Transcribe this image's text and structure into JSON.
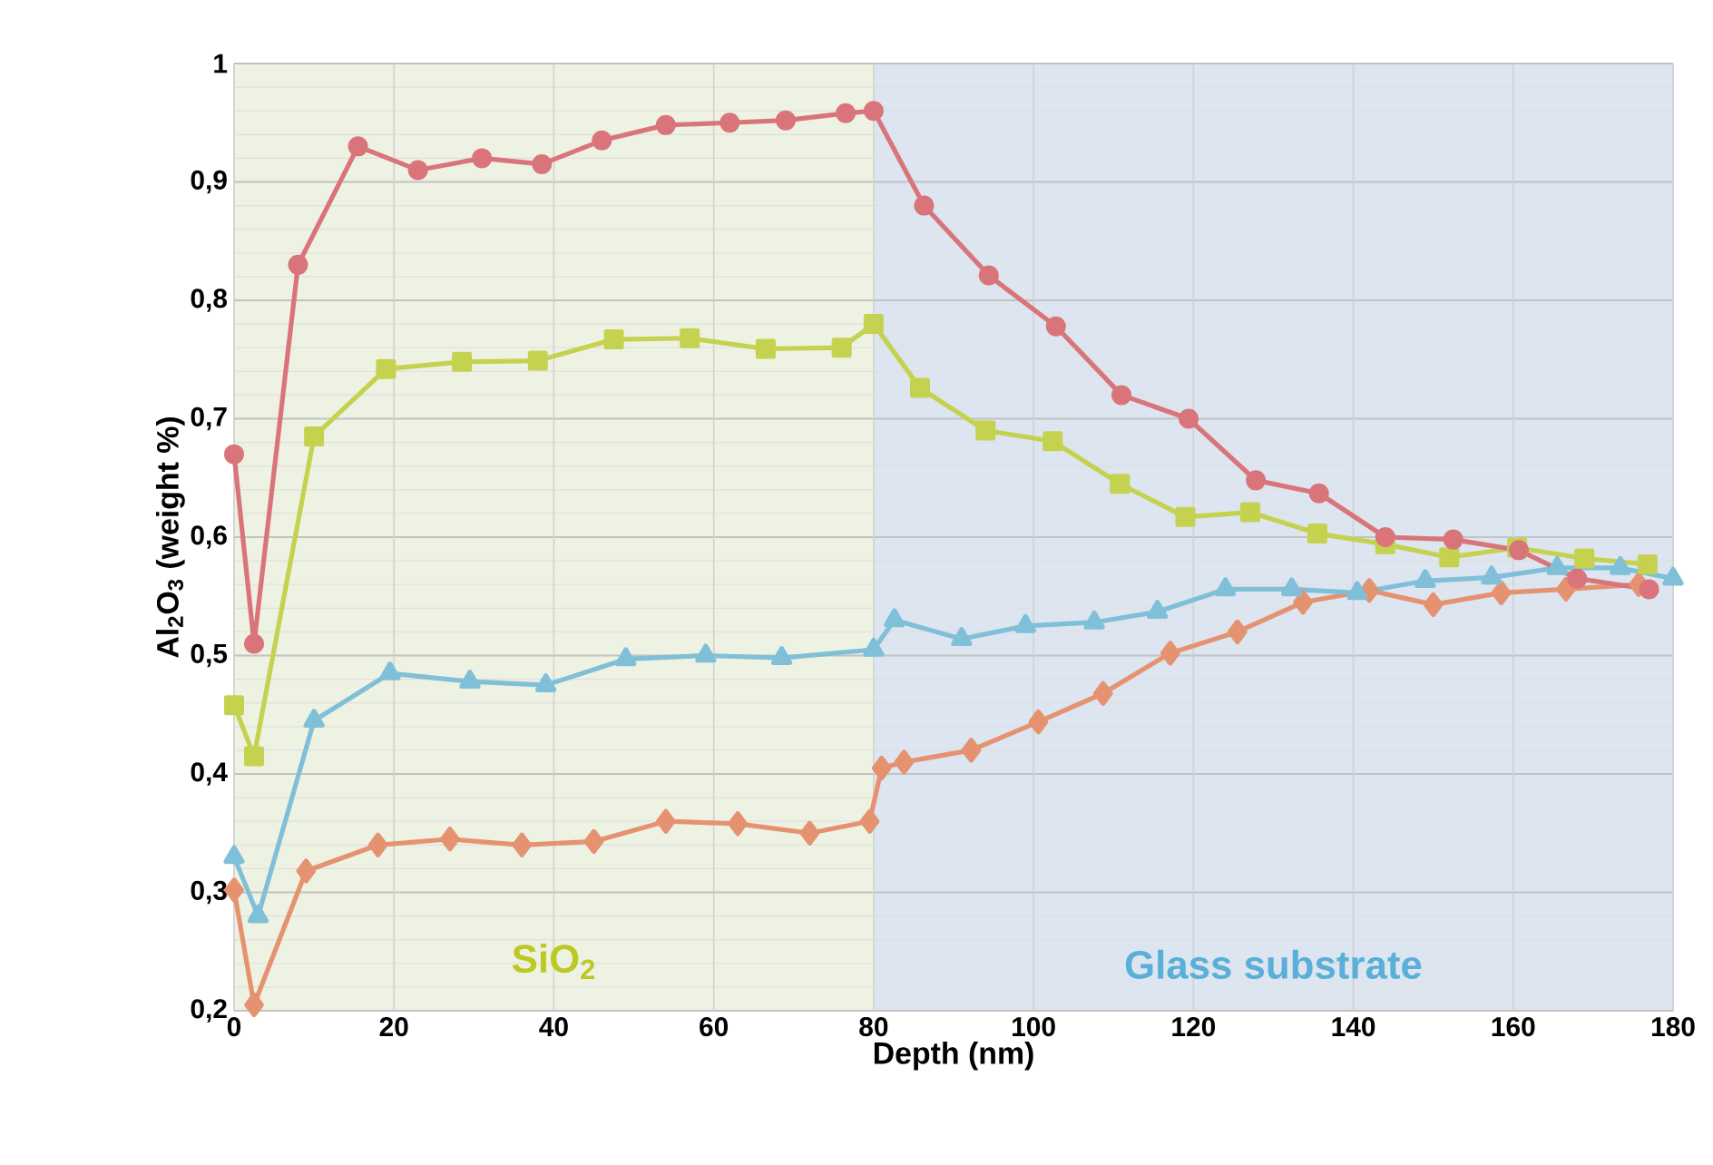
{
  "chart_data": {
    "type": "line",
    "xlabel": "Depth (nm)",
    "ylabel": "Al$_{2}$O$_{3}$ (weight %)",
    "xlim": [
      0,
      180
    ],
    "xticks": [
      0,
      20,
      40,
      60,
      80,
      100,
      120,
      140,
      160,
      180
    ],
    "ylim": [
      0.2,
      1
    ],
    "yticks": [
      {
        "value": 0.2,
        "label": "0,2"
      },
      {
        "value": 0.3,
        "label": "0,3"
      },
      {
        "value": 0.4,
        "label": "0,4"
      },
      {
        "value": 0.5,
        "label": "0,5"
      },
      {
        "value": 0.6,
        "label": "0,6"
      },
      {
        "value": 0.7,
        "label": "0,7"
      },
      {
        "value": 0.8,
        "label": "0,8"
      },
      {
        "value": 0.9,
        "label": "0,9"
      },
      {
        "value": 1,
        "label": "1"
      }
    ],
    "grid": true,
    "bands": [
      {
        "axis": "x",
        "from": 0,
        "to": 80,
        "label": "SiO$_{2}$",
        "color": "#eef2e3"
      },
      {
        "axis": "x",
        "from": 80,
        "to": 180,
        "label": "Glass substrate",
        "color": "#dce5f0"
      }
    ],
    "series": [
      {
        "color": "#d9757a",
        "marker": "circle",
        "x": [
          0,
          2.5,
          8,
          15.5,
          23,
          31,
          38.5,
          46,
          54,
          62,
          69,
          76.5,
          80,
          86.3,
          94.4,
          102.8,
          111,
          119.4,
          127.8,
          135.7,
          144,
          152.5,
          160.7,
          168,
          177
        ],
        "values": [
          0.67,
          0.51,
          0.83,
          0.93,
          0.91,
          0.92,
          0.915,
          0.935,
          0.948,
          0.95,
          0.952,
          0.958,
          0.96,
          0.88,
          0.821,
          0.778,
          0.72,
          0.7,
          0.648,
          0.637,
          0.6,
          0.598,
          0.589,
          0.565,
          0.556
        ]
      },
      {
        "color": "#c5d24f",
        "marker": "square",
        "x": [
          0,
          2.5,
          10,
          19,
          28.5,
          38,
          47.5,
          57,
          66.5,
          76,
          80,
          85.8,
          94,
          102.4,
          110.8,
          119,
          127.1,
          135.5,
          144,
          152,
          160.5,
          168.9,
          176.8
        ],
        "values": [
          0.458,
          0.415,
          0.685,
          0.742,
          0.748,
          0.749,
          0.767,
          0.768,
          0.759,
          0.76,
          0.78,
          0.726,
          0.69,
          0.681,
          0.645,
          0.617,
          0.621,
          0.603,
          0.594,
          0.583,
          0.591,
          0.582,
          0.577
        ]
      },
      {
        "color": "#7fc0d8",
        "marker": "triangle",
        "x": [
          0,
          3,
          10,
          19.5,
          29.5,
          39,
          49,
          59,
          68.5,
          80,
          82.6,
          91,
          99,
          107.6,
          115.5,
          124,
          132.3,
          140.5,
          149,
          157.3,
          165.5,
          173.4,
          180
        ],
        "values": [
          0.33,
          0.28,
          0.445,
          0.485,
          0.478,
          0.475,
          0.497,
          0.5,
          0.498,
          0.505,
          0.53,
          0.514,
          0.525,
          0.528,
          0.537,
          0.556,
          0.556,
          0.553,
          0.563,
          0.566,
          0.574,
          0.574,
          0.565
        ]
      },
      {
        "color": "#e59270",
        "marker": "diamond",
        "x": [
          0,
          2.5,
          9,
          18,
          27,
          36,
          45,
          54,
          63,
          72,
          79.5,
          81,
          83.8,
          92.2,
          100.6,
          108.7,
          117.1,
          125.5,
          133.7,
          142,
          150,
          158.5,
          166.6,
          175.7
        ],
        "values": [
          0.302,
          0.205,
          0.318,
          0.34,
          0.345,
          0.34,
          0.343,
          0.36,
          0.358,
          0.35,
          0.36,
          0.405,
          0.41,
          0.42,
          0.444,
          0.468,
          0.502,
          0.52,
          0.545,
          0.555,
          0.543,
          0.553,
          0.556,
          0.56
        ]
      }
    ]
  }
}
